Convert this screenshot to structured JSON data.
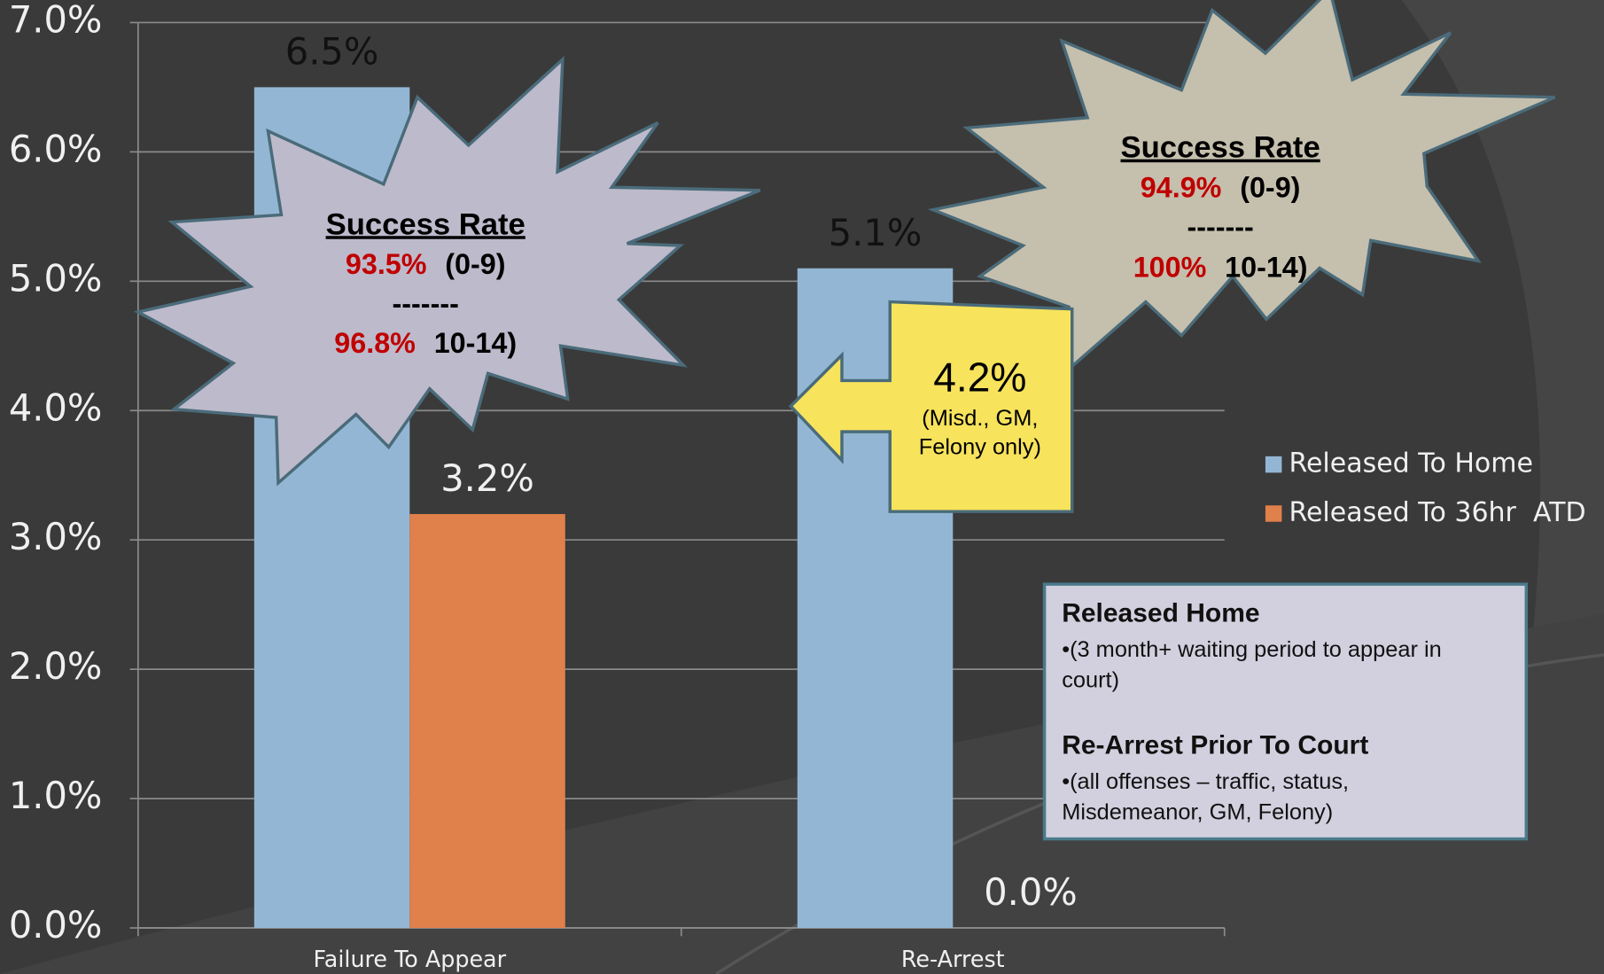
{
  "chart_data": {
    "type": "bar",
    "categories": [
      "Failure To Appear",
      "Re-Arrest"
    ],
    "series": [
      {
        "name": "Released To Home",
        "color": "#93b6d4",
        "values": [
          6.5,
          5.1
        ],
        "value_labels": [
          "6.5%",
          "5.1%"
        ]
      },
      {
        "name": "Released To 36hr  ATD",
        "color": "#e0804a",
        "values": [
          3.2,
          0
        ],
        "value_labels": [
          "3.2%",
          "0.0%"
        ]
      }
    ],
    "ylim": [
      0,
      7
    ],
    "yticks": [
      {
        "value": 0,
        "label": "0.0%"
      },
      {
        "value": 1,
        "label": "1.0%"
      },
      {
        "value": 2,
        "label": "2.0%"
      },
      {
        "value": 3,
        "label": "3.0%"
      },
      {
        "value": 4,
        "label": "4.0%"
      },
      {
        "value": 5,
        "label": "5.0%"
      },
      {
        "value": 6,
        "label": "6.0%"
      },
      {
        "value": 7,
        "label": "7.0%"
      }
    ],
    "grid": true,
    "legend": "right",
    "annotations": {
      "starburst_left": {
        "title": "Success Rate",
        "rate_1": "93.5%",
        "range_1": "(0-9)",
        "separator": "-------",
        "rate_2": "96.8%",
        "range_2": "10-14)"
      },
      "starburst_right": {
        "title": "Success Rate",
        "rate_1": "94.9%",
        "range_1": "(0-9)",
        "separator": "-------",
        "rate_2": "100%",
        "range_2": "10-14)"
      },
      "callout": {
        "value_text": "4.2%",
        "note_lines": [
          "(Misd., GM,",
          "Felony only)"
        ]
      },
      "text_box": {
        "heading_1": "Released Home",
        "lines_1": [
          "•(3 month+ waiting period to appear in",
          "court)"
        ],
        "heading_2": "Re-Arrest Prior To Court",
        "lines_2": [
          "•(all offenses – traffic, status,",
          "Misdemeanor, GM, Felony)"
        ]
      }
    }
  }
}
